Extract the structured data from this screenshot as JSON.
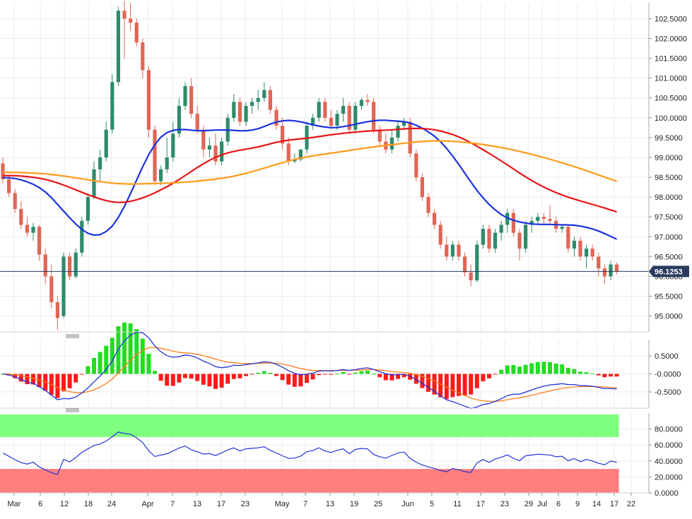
{
  "chart_data": [
    {
      "type": "candlestick",
      "title": "",
      "current_price": 96.1253,
      "current_price_label": "96.1253",
      "yticks": [
        "95.0000",
        "95.5000",
        "96.0000",
        "96.5000",
        "97.0000",
        "97.5000",
        "98.0000",
        "98.5000",
        "99.0000",
        "99.5000",
        "100.0000",
        "100.5000",
        "101.0000",
        "101.5000",
        "102.0000",
        "102.5000"
      ],
      "ylim": [
        94.6,
        102.9
      ],
      "xticks": [
        "Mar",
        "6",
        "12",
        "18",
        "24",
        "Apr",
        "7",
        "13",
        "17",
        "23",
        "May",
        "7",
        "13",
        "19",
        "25",
        "Jun",
        "5",
        "11",
        "17",
        "23",
        "29",
        "Jul",
        "6",
        "9",
        "14",
        "17",
        "22"
      ],
      "candles_ohlc": [
        [
          98.85,
          99.0,
          98.35,
          98.45
        ],
        [
          98.45,
          98.55,
          98.0,
          98.1
        ],
        [
          98.1,
          98.2,
          97.6,
          97.7
        ],
        [
          97.7,
          97.9,
          97.2,
          97.3
        ],
        [
          97.3,
          97.5,
          97.0,
          97.1
        ],
        [
          97.1,
          97.35,
          96.9,
          97.25
        ],
        [
          97.25,
          97.3,
          96.4,
          96.55
        ],
        [
          96.55,
          96.7,
          95.8,
          96.0
        ],
        [
          96.0,
          96.3,
          95.2,
          95.35
        ],
        [
          95.35,
          95.5,
          94.65,
          94.95
        ],
        [
          95.0,
          96.6,
          94.95,
          96.5
        ],
        [
          96.5,
          96.6,
          95.9,
          96.0
        ],
        [
          96.0,
          96.7,
          95.95,
          96.6
        ],
        [
          96.6,
          97.5,
          96.5,
          97.4
        ],
        [
          97.4,
          98.1,
          97.3,
          98.0
        ],
        [
          98.0,
          98.9,
          97.95,
          98.7
        ],
        [
          98.7,
          99.2,
          98.4,
          99.0
        ],
        [
          99.0,
          99.9,
          98.9,
          99.7
        ],
        [
          99.7,
          101.1,
          99.6,
          100.9
        ],
        [
          100.9,
          102.8,
          100.8,
          102.7
        ],
        [
          102.7,
          102.95,
          101.5,
          102.5
        ],
        [
          102.5,
          102.9,
          102.2,
          102.4
        ],
        [
          102.4,
          102.5,
          101.8,
          101.9
        ],
        [
          101.9,
          102.0,
          101.0,
          101.2
        ],
        [
          101.2,
          101.3,
          99.5,
          99.7
        ],
        [
          99.7,
          99.8,
          98.3,
          98.4
        ],
        [
          98.4,
          98.8,
          98.3,
          98.7
        ],
        [
          98.7,
          99.5,
          98.6,
          99.0
        ],
        [
          99.0,
          99.9,
          98.9,
          99.6
        ],
        [
          99.6,
          100.5,
          99.5,
          100.3
        ],
        [
          100.3,
          100.9,
          100.2,
          100.8
        ],
        [
          100.8,
          101.0,
          100.0,
          100.1
        ],
        [
          100.1,
          100.3,
          99.6,
          99.7
        ],
        [
          99.7,
          99.8,
          99.0,
          99.2
        ],
        [
          99.2,
          99.5,
          99.0,
          99.3
        ],
        [
          99.3,
          99.6,
          98.8,
          98.9
        ],
        [
          98.9,
          99.5,
          98.8,
          99.4
        ],
        [
          99.4,
          100.1,
          99.3,
          100.0
        ],
        [
          100.0,
          100.6,
          99.9,
          100.4
        ],
        [
          100.4,
          100.5,
          99.8,
          99.9
        ],
        [
          99.9,
          100.4,
          99.8,
          100.3
        ],
        [
          100.3,
          100.5,
          100.1,
          100.4
        ],
        [
          100.4,
          100.7,
          100.2,
          100.5
        ],
        [
          100.5,
          100.9,
          100.4,
          100.7
        ],
        [
          100.7,
          100.8,
          100.1,
          100.2
        ],
        [
          100.2,
          100.3,
          99.7,
          99.8
        ],
        [
          99.8,
          100.0,
          99.2,
          99.35
        ],
        [
          99.35,
          99.5,
          98.8,
          98.9
        ],
        [
          98.9,
          99.1,
          98.85,
          98.95
        ],
        [
          98.95,
          99.2,
          98.9,
          99.2
        ],
        [
          99.2,
          99.9,
          99.1,
          99.8
        ],
        [
          99.8,
          100.1,
          99.7,
          100.0
        ],
        [
          100.0,
          100.5,
          99.9,
          100.4
        ],
        [
          100.4,
          100.5,
          99.9,
          100.0
        ],
        [
          100.0,
          100.2,
          99.7,
          99.8
        ],
        [
          99.8,
          100.2,
          99.7,
          100.1
        ],
        [
          100.1,
          100.5,
          99.9,
          100.3
        ],
        [
          100.3,
          100.4,
          99.6,
          99.7
        ],
        [
          99.7,
          100.4,
          99.6,
          100.3
        ],
        [
          100.3,
          100.5,
          100.2,
          100.45
        ],
        [
          100.45,
          100.6,
          100.3,
          100.4
        ],
        [
          100.4,
          100.5,
          99.6,
          99.7
        ],
        [
          99.7,
          99.8,
          99.3,
          99.4
        ],
        [
          99.4,
          99.6,
          99.1,
          99.2
        ],
        [
          99.2,
          99.7,
          99.1,
          99.5
        ],
        [
          99.5,
          99.9,
          99.4,
          99.8
        ],
        [
          99.8,
          100.0,
          99.7,
          99.9
        ],
        [
          99.9,
          100.0,
          99.0,
          99.1
        ],
        [
          99.1,
          99.2,
          98.4,
          98.5
        ],
        [
          98.5,
          98.6,
          97.9,
          98.0
        ],
        [
          98.0,
          98.1,
          97.5,
          97.6
        ],
        [
          97.6,
          97.7,
          97.2,
          97.3
        ],
        [
          97.3,
          97.4,
          96.7,
          96.8
        ],
        [
          96.8,
          97.0,
          96.4,
          96.5
        ],
        [
          96.5,
          96.9,
          96.4,
          96.8
        ],
        [
          96.8,
          96.9,
          96.4,
          96.5
        ],
        [
          96.5,
          96.6,
          96.0,
          96.1
        ],
        [
          96.1,
          96.3,
          95.75,
          95.9
        ],
        [
          95.9,
          96.9,
          95.85,
          96.8
        ],
        [
          96.8,
          97.3,
          96.7,
          97.2
        ],
        [
          97.2,
          97.3,
          96.6,
          96.7
        ],
        [
          96.7,
          97.2,
          96.6,
          97.1
        ],
        [
          97.1,
          97.4,
          96.9,
          97.3
        ],
        [
          97.3,
          97.7,
          97.1,
          97.6
        ],
        [
          97.6,
          97.7,
          97.0,
          97.1
        ],
        [
          97.1,
          97.2,
          96.4,
          96.7
        ],
        [
          96.7,
          97.4,
          96.6,
          97.3
        ],
        [
          97.3,
          97.5,
          97.1,
          97.4
        ],
        [
          97.4,
          97.6,
          97.3,
          97.5
        ],
        [
          97.5,
          97.6,
          97.3,
          97.45
        ],
        [
          97.45,
          97.8,
          97.3,
          97.4
        ],
        [
          97.4,
          97.5,
          97.1,
          97.2
        ],
        [
          97.2,
          97.3,
          97.1,
          97.25
        ],
        [
          97.25,
          97.3,
          96.6,
          96.7
        ],
        [
          96.7,
          97.0,
          96.5,
          96.9
        ],
        [
          96.9,
          97.0,
          96.4,
          96.5
        ],
        [
          96.5,
          96.8,
          96.2,
          96.7
        ],
        [
          96.7,
          96.8,
          96.4,
          96.5
        ],
        [
          96.5,
          96.6,
          96.0,
          96.2
        ],
        [
          96.2,
          96.3,
          95.8,
          96.0
        ],
        [
          96.0,
          96.4,
          95.9,
          96.3
        ],
        [
          96.3,
          96.35,
          96.05,
          96.1253
        ]
      ],
      "sma_periods": [
        50,
        100,
        200
      ],
      "series_colors": {
        "up": "#2e8b6b",
        "down": "#e06656",
        "sma50": "#1a33e0",
        "sma100": "#e81515",
        "sma200": "#ff9a1a"
      }
    },
    {
      "type": "macd",
      "yticks": [
        "0.5000",
        "-0.0000",
        "-0.5000"
      ],
      "ylim": [
        -0.95,
        0.95
      ],
      "colors": {
        "macd": "#2234d8",
        "signal": "#ff7a1a",
        "hist_pos": "#22dd22",
        "hist_neg": "#ff1a1a"
      }
    },
    {
      "type": "rsi",
      "yticks": [
        "80.0000",
        "60.0000",
        "40.0000",
        "20.0000",
        "0.0000"
      ],
      "ylim": [
        0,
        100
      ],
      "overbought": 70,
      "oversold": 30,
      "colors": {
        "line": "#2234d8",
        "overbought_zone": "#7fff7f",
        "oversold_zone": "#ff7f7f"
      }
    }
  ]
}
